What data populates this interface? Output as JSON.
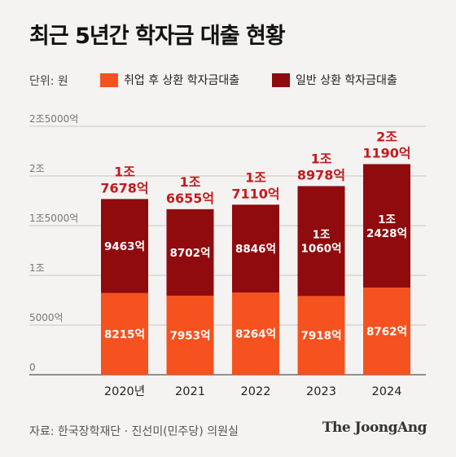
{
  "title": "최근 5년간 학자금 대출 현황",
  "unit_label": "단위: 원",
  "source": "자료: 한국장학재단 · 진선미(민주당) 의원실",
  "logo": "The JoongAng",
  "colors": {
    "employment_loan": "#f5521f",
    "general_loan": "#8f0b0e",
    "total_label": "#c41a1f",
    "grid": "#c9c7c4",
    "axis_text": "#777777"
  },
  "chart_data": {
    "type": "bar",
    "stacked": true,
    "title": "최근 5년간 학자금 대출 현황",
    "unit": "원",
    "categories": [
      "2020년",
      "2021",
      "2022",
      "2023",
      "2024"
    ],
    "ylim": [
      0,
      25000
    ],
    "y_unit": "억",
    "yticks": [
      {
        "value": 0,
        "label": "0"
      },
      {
        "value": 5000,
        "label": "5000억"
      },
      {
        "value": 10000,
        "label": "1조"
      },
      {
        "value": 15000,
        "label": "1조5000억"
      },
      {
        "value": 20000,
        "label": "2조"
      },
      {
        "value": 25000,
        "label": "2조5000억"
      }
    ],
    "grid": true,
    "legend_position": "top",
    "series": [
      {
        "name": "취업 후 상환 학자금대출",
        "values": [
          8215,
          7953,
          8264,
          7918,
          8762
        ],
        "labels": [
          [
            "8215억"
          ],
          [
            "7953억"
          ],
          [
            "8264억"
          ],
          [
            "7918억"
          ],
          [
            "8762억"
          ]
        ]
      },
      {
        "name": "일반 상환 학자금대출",
        "values": [
          9463,
          8702,
          8846,
          11060,
          12428
        ],
        "labels": [
          [
            "9463억"
          ],
          [
            "8702억"
          ],
          [
            "8846억"
          ],
          [
            "1조",
            "1060억"
          ],
          [
            "1조",
            "2428억"
          ]
        ]
      }
    ],
    "totals": [
      17678,
      16655,
      17110,
      18978,
      21190
    ],
    "total_labels": [
      [
        "1조",
        "7678억"
      ],
      [
        "1조",
        "6655억"
      ],
      [
        "1조",
        "7110억"
      ],
      [
        "1조",
        "8978억"
      ],
      [
        "2조",
        "1190억"
      ]
    ]
  }
}
